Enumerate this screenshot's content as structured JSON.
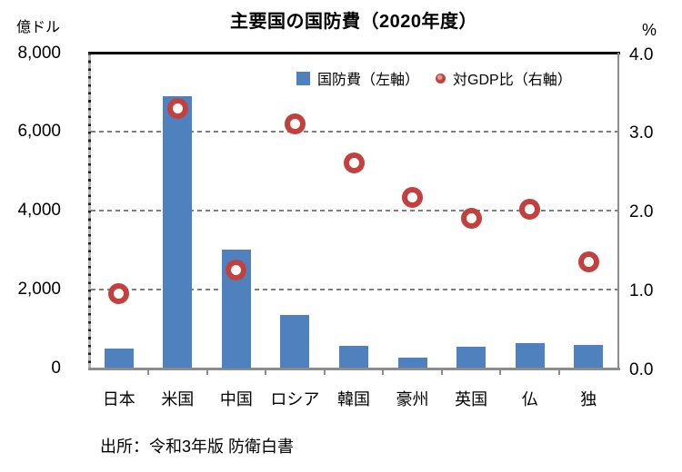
{
  "title": "主要国の国防費（2020年度）",
  "left_axis": {
    "unit": "億ドル",
    "tick_labels": [
      "8,000",
      "6,000",
      "4,000",
      "2,000",
      "0"
    ],
    "tick_values": [
      8000,
      6000,
      4000,
      2000,
      0
    ]
  },
  "right_axis": {
    "unit": "%",
    "tick_labels": [
      "4.0",
      "3.0",
      "2.0",
      "1.0",
      "0.0"
    ],
    "tick_values": [
      4.0,
      3.0,
      2.0,
      1.0,
      0.0
    ]
  },
  "legend": {
    "bar_label": "国防費（左軸）",
    "marker_label": "対GDP比（右軸）"
  },
  "source": "出所：令和3年版 防衛白書",
  "colors": {
    "bar": "#4E81BD",
    "marker_ring": "#C2413E",
    "gridline": "#7F7F7F",
    "axis_gray": "#8C8C8C",
    "frame_top": "#000000"
  },
  "chart_data": {
    "type": "bar",
    "subtype": "dual-axis bar + scatter markers",
    "title": "主要国の国防費（2020年度）",
    "categories": [
      "日本",
      "米国",
      "中国",
      "ロシア",
      "韓国",
      "豪州",
      "英国",
      "仏",
      "独"
    ],
    "series": [
      {
        "name": "国防費（左軸）",
        "type": "bar",
        "axis": "left",
        "unit": "億ドル",
        "values": [
          490,
          6900,
          3000,
          1340,
          560,
          270,
          540,
          630,
          590
        ]
      },
      {
        "name": "対GDP比（右軸）",
        "type": "scatter",
        "axis": "right",
        "unit": "%",
        "values": [
          0.95,
          3.3,
          1.25,
          3.1,
          2.6,
          2.17,
          1.9,
          2.02,
          1.35
        ]
      }
    ],
    "left_ylim": [
      0,
      8000
    ],
    "right_ylim": [
      0,
      4.0
    ],
    "gridlines": "horizontal dashed at left-axis 2000, 4000, 6000",
    "legend_position": "top inside plot",
    "source": "出所：令和3年版 防衛白書"
  }
}
